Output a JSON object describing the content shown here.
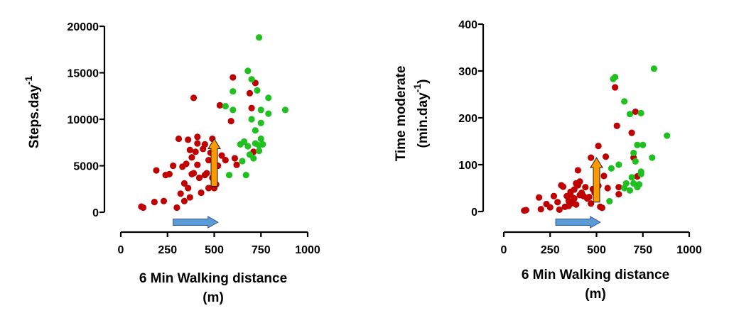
{
  "chart_data": [
    {
      "type": "scatter",
      "title": "",
      "xlabel": [
        "6 Min Walking distance",
        "(m)"
      ],
      "ylabel": [
        "Steps.day",
        "-1"
      ],
      "xlim": [
        0,
        1000
      ],
      "ylim": [
        0,
        20000
      ],
      "x_ticks": [
        "0",
        "250",
        "500",
        "750",
        "1000"
      ],
      "y_ticks": [
        "0",
        "5000",
        "10000",
        "15000",
        "20000"
      ],
      "grid": false,
      "legend": "none",
      "colors": {
        "red": "#c00000",
        "green": "#1fc01f",
        "orange": "#ff9900",
        "blue": "#5b9bd5"
      },
      "series": [
        {
          "color": "red",
          "points": [
            [
              110,
              600
            ],
            [
              120,
              500
            ],
            [
              180,
              1100
            ],
            [
              190,
              4500
            ],
            [
              230,
              1200
            ],
            [
              240,
              4000
            ],
            [
              260,
              4100
            ],
            [
              280,
              5000
            ],
            [
              300,
              500
            ],
            [
              310,
              7900
            ],
            [
              320,
              2000
            ],
            [
              330,
              4900
            ],
            [
              340,
              3100
            ],
            [
              340,
              1200
            ],
            [
              350,
              5200
            ],
            [
              360,
              2600
            ],
            [
              360,
              7800
            ],
            [
              370,
              6700
            ],
            [
              370,
              1600
            ],
            [
              380,
              4100
            ],
            [
              380,
              5900
            ],
            [
              390,
              12300
            ],
            [
              390,
              4200
            ],
            [
              400,
              6500
            ],
            [
              410,
              7400
            ],
            [
              410,
              8100
            ],
            [
              410,
              5100
            ],
            [
              420,
              3700
            ],
            [
              430,
              2100
            ],
            [
              440,
              6800
            ],
            [
              450,
              4000
            ],
            [
              450,
              7300
            ],
            [
              460,
              4200
            ],
            [
              470,
              5600
            ],
            [
              470,
              2600
            ],
            [
              480,
              6400
            ],
            [
              490,
              3700
            ],
            [
              490,
              7900
            ],
            [
              500,
              2600
            ],
            [
              510,
              3000
            ],
            [
              520,
              5000
            ],
            [
              530,
              11500
            ],
            [
              540,
              6100
            ],
            [
              560,
              5600
            ],
            [
              590,
              9800
            ],
            [
              600,
              14500
            ],
            [
              610,
              5800
            ],
            [
              620,
              5100
            ],
            [
              690,
              12800
            ],
            [
              700,
              11200
            ],
            [
              710,
              6500
            ],
            [
              720,
              13900
            ]
          ]
        },
        {
          "color": "green",
          "points": [
            [
              560,
              11400
            ],
            [
              580,
              4000
            ],
            [
              600,
              11000
            ],
            [
              600,
              13000
            ],
            [
              640,
              7300
            ],
            [
              650,
              5500
            ],
            [
              660,
              7600
            ],
            [
              670,
              4000
            ],
            [
              680,
              15200
            ],
            [
              680,
              7100
            ],
            [
              690,
              6200
            ],
            [
              700,
              14300
            ],
            [
              700,
              10000
            ],
            [
              710,
              5800
            ],
            [
              720,
              8800
            ],
            [
              720,
              7400
            ],
            [
              730,
              13100
            ],
            [
              740,
              18800
            ],
            [
              740,
              7200
            ],
            [
              740,
              6600
            ],
            [
              750,
              11000
            ],
            [
              750,
              7900
            ],
            [
              750,
              9600
            ],
            [
              760,
              7300
            ],
            [
              790,
              12300
            ],
            [
              790,
              10600
            ],
            [
              880,
              11000
            ]
          ]
        }
      ],
      "arrows": [
        {
          "color": "orange",
          "direction": "up",
          "x": 500,
          "y_from": 2800,
          "y_to": 7900
        },
        {
          "color": "blue",
          "direction": "right",
          "x_from": 280,
          "x_to": 520,
          "y": -700
        }
      ]
    },
    {
      "type": "scatter",
      "title": "",
      "xlabel": [
        "6 Min Walking distance",
        "(m)"
      ],
      "ylabel": [
        "Time moderate",
        "(min.day",
        "-1",
        ")"
      ],
      "xlim": [
        0,
        1000
      ],
      "ylim": [
        0,
        400
      ],
      "x_ticks": [
        "0",
        "250",
        "500",
        "750",
        "1000"
      ],
      "y_ticks": [
        "0",
        "100",
        "200",
        "300",
        "400"
      ],
      "grid": false,
      "legend": "none",
      "colors": {
        "red": "#c00000",
        "green": "#1fc01f",
        "orange": "#ff9900",
        "blue": "#5b9bd5"
      },
      "series": [
        {
          "color": "red",
          "points": [
            [
              110,
              2
            ],
            [
              120,
              3
            ],
            [
              190,
              30
            ],
            [
              200,
              5
            ],
            [
              230,
              16
            ],
            [
              250,
              9
            ],
            [
              270,
              33
            ],
            [
              290,
              20
            ],
            [
              300,
              4
            ],
            [
              310,
              56
            ],
            [
              320,
              53
            ],
            [
              330,
              10
            ],
            [
              340,
              33
            ],
            [
              350,
              12
            ],
            [
              350,
              23
            ],
            [
              360,
              36
            ],
            [
              360,
              42
            ],
            [
              370,
              18
            ],
            [
              380,
              28
            ],
            [
              380,
              47
            ],
            [
              390,
              60
            ],
            [
              390,
              15
            ],
            [
              400,
              88
            ],
            [
              400,
              56
            ],
            [
              410,
              35
            ],
            [
              410,
              64
            ],
            [
              420,
              40
            ],
            [
              430,
              33
            ],
            [
              440,
              52
            ],
            [
              450,
              28
            ],
            [
              460,
              31
            ],
            [
              470,
              17
            ],
            [
              470,
              115
            ],
            [
              480,
              48
            ],
            [
              490,
              40
            ],
            [
              500,
              30
            ],
            [
              510,
              140
            ],
            [
              510,
              55
            ],
            [
              520,
              10
            ],
            [
              530,
              8
            ],
            [
              540,
              76
            ],
            [
              550,
              117
            ],
            [
              560,
              50
            ],
            [
              600,
              265
            ],
            [
              610,
              183
            ],
            [
              620,
              37
            ],
            [
              620,
              52
            ],
            [
              690,
              168
            ],
            [
              700,
              115
            ],
            [
              710,
              213
            ],
            [
              720,
              75
            ]
          ]
        },
        {
          "color": "green",
          "points": [
            [
              570,
              22
            ],
            [
              580,
              92
            ],
            [
              590,
              283
            ],
            [
              600,
              287
            ],
            [
              620,
              100
            ],
            [
              650,
              235
            ],
            [
              650,
              50
            ],
            [
              660,
              60
            ],
            [
              680,
              208
            ],
            [
              680,
              45
            ],
            [
              690,
              73
            ],
            [
              700,
              125
            ],
            [
              700,
              60
            ],
            [
              710,
              107
            ],
            [
              720,
              52
            ],
            [
              720,
              142
            ],
            [
              730,
              58
            ],
            [
              740,
              210
            ],
            [
              740,
              85
            ],
            [
              740,
              80
            ],
            [
              750,
              142
            ],
            [
              800,
              115
            ],
            [
              810,
              305
            ],
            [
              880,
              162
            ]
          ]
        }
      ],
      "arrows": [
        {
          "color": "orange",
          "direction": "up",
          "x": 500,
          "y_from": 20,
          "y_to": 115
        },
        {
          "color": "blue",
          "direction": "right",
          "x_from": 280,
          "x_to": 520,
          "y": -20
        }
      ]
    }
  ]
}
